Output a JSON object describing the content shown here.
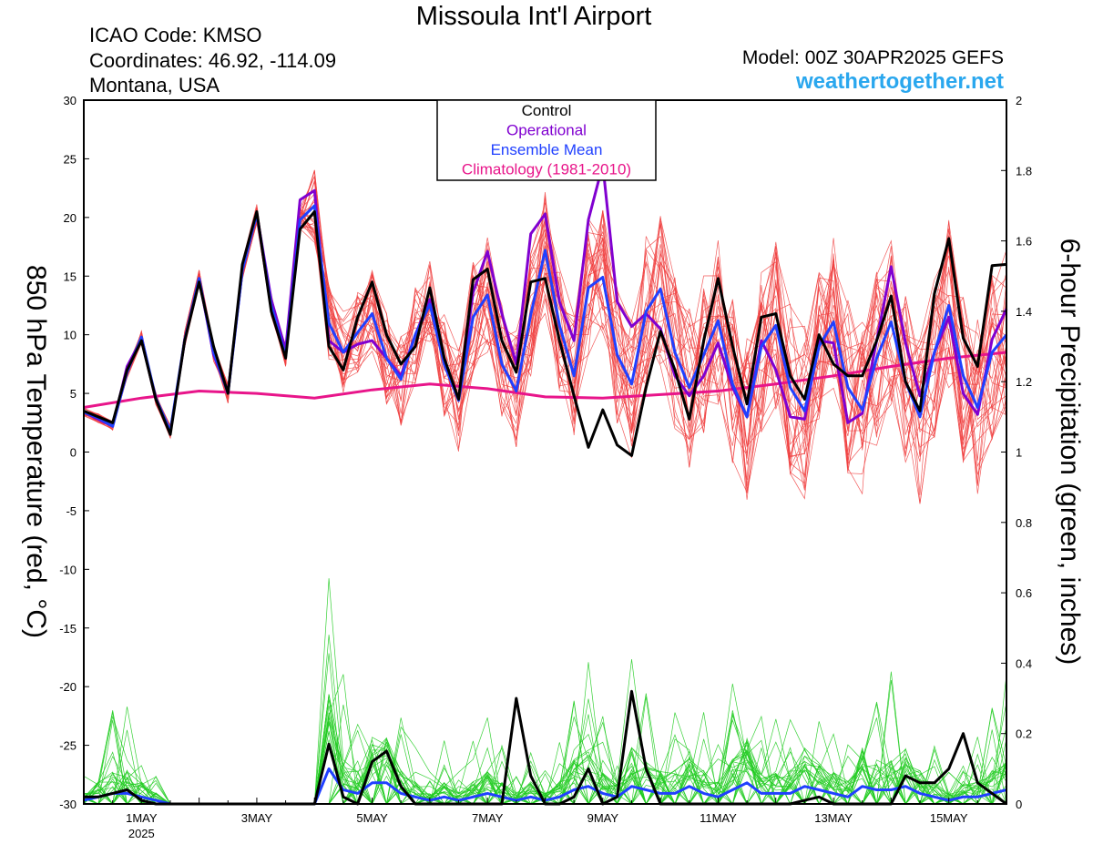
{
  "header": {
    "title": "Missoula Int'l Airport",
    "icao": "ICAO Code: KMSO",
    "coordinates": "Coordinates: 46.92, -114.09",
    "state": "Montana, USA",
    "model": "Model: 00Z 30APR2025 GEFS",
    "website": "weathertogether.net"
  },
  "chart_data": {
    "type": "line",
    "title": "Missoula Int'l Airport",
    "xlabel": "",
    "y_left_label": "850 hPa Temperature (red, °C)",
    "y_right_label": "6-hour Precipitation (green, inches)",
    "y_left_range": [
      -30,
      30
    ],
    "y_right_range": [
      0,
      2
    ],
    "y_left_ticks": [
      "30",
      "25",
      "20",
      "15",
      "10",
      "5",
      "0",
      "-5",
      "-10",
      "-15",
      "-20",
      "-25",
      "-30"
    ],
    "y_right_ticks": [
      "2",
      "1.8",
      "1.6",
      "1.4",
      "1.2",
      "1",
      "0.8",
      "0.6",
      "0.4",
      "0.2",
      "0"
    ],
    "x_day_range": [
      0,
      16
    ],
    "x_ticks": [
      {
        "day": 1,
        "label": "1MAY",
        "sublabel": "2025"
      },
      {
        "day": 3,
        "label": "3MAY"
      },
      {
        "day": 5,
        "label": "5MAY"
      },
      {
        "day": 7,
        "label": "7MAY"
      },
      {
        "day": 9,
        "label": "9MAY"
      },
      {
        "day": 11,
        "label": "11MAY"
      },
      {
        "day": 13,
        "label": "13MAY"
      },
      {
        "day": 15,
        "label": "15MAY"
      }
    ],
    "legend": {
      "position": "top-center",
      "items": [
        {
          "label": "Control",
          "color": "#000000"
        },
        {
          "label": "Operational",
          "color": "#8000d0"
        },
        {
          "label": "Ensemble Mean",
          "color": "#2040ff"
        },
        {
          "label": "Climatology (1981-2010)",
          "color": "#e8158a"
        }
      ]
    },
    "colors": {
      "members_temp": "#f04040",
      "members_precip": "#22cc22",
      "control": "#000000",
      "operational": "#8000d0",
      "ensemble_mean": "#2040ff",
      "climatology": "#e8158a"
    },
    "temperature_series": {
      "x_start_day": 0,
      "x_step_days": 0.25,
      "control": [
        3.5,
        3,
        2.5,
        7,
        9.5,
        4.5,
        1.5,
        9.5,
        14.5,
        9,
        5,
        16,
        20.5,
        12,
        8,
        19,
        20.5,
        9,
        7,
        11.5,
        14.5,
        10,
        7.5,
        9,
        14,
        8,
        4.5,
        14.7,
        15.6,
        9.5,
        6.8,
        14.5,
        14.8,
        9.5,
        4.8,
        0.4,
        3.6,
        0.6,
        -0.3,
        5.5,
        10.3,
        7,
        2.8,
        9.5,
        14.8,
        9,
        4.1,
        11.5,
        11.8,
        6.5,
        4.5,
        10,
        7.5,
        6.5,
        6.5,
        9.5,
        13.3,
        6,
        3.5,
        13.5,
        18.2,
        9.7,
        7.3,
        15.9,
        16
      ],
      "operational": [
        3.4,
        2.8,
        2.2,
        7.3,
        9.6,
        4.5,
        1.7,
        9.5,
        14.8,
        8.3,
        5.1,
        15.5,
        20.3,
        13,
        8.7,
        21.5,
        22.3,
        9.5,
        8.5,
        9.2,
        9.5,
        8,
        6.5,
        10,
        13,
        7.5,
        4.5,
        13.6,
        17.1,
        11.8,
        7.5,
        18.6,
        20.3,
        12.8,
        9.5,
        19.8,
        24.5,
        12.8,
        10.7,
        11.8,
        10.5,
        6.5,
        4.8,
        6.5,
        9.3,
        5.5,
        3,
        9.5,
        7,
        3,
        2.8,
        9.5,
        9.3,
        2.5,
        3.3,
        9.5,
        15.8,
        9.3,
        4.8,
        8.5,
        11.5,
        5,
        3.2,
        9.6,
        12.2
      ],
      "ensemble_mean": [
        3.4,
        2.9,
        2.2,
        6.8,
        9.8,
        4.6,
        1.8,
        9.6,
        14.8,
        8.5,
        5,
        15.5,
        20.3,
        12.5,
        8.2,
        19.8,
        21,
        11,
        8.5,
        10.2,
        11.8,
        8,
        6.2,
        10,
        12.6,
        7.5,
        4.4,
        11.5,
        13.4,
        7.5,
        5.2,
        11.7,
        17.2,
        10.8,
        6.5,
        14,
        14.9,
        8.3,
        5.8,
        12,
        13.9,
        8.5,
        5.5,
        8.3,
        11.2,
        5.8,
        3,
        9,
        10.8,
        5.5,
        3.5,
        9,
        11.1,
        5.5,
        3.6,
        8,
        11.1,
        6,
        3,
        8.5,
        12.5,
        6.5,
        3.8,
        8.5,
        10
      ]
    },
    "climatology_series": {
      "days": [
        0,
        1,
        2,
        3,
        4,
        5,
        6,
        7,
        8,
        9,
        10,
        11,
        12,
        13,
        14,
        15,
        16
      ],
      "values": [
        3.8,
        4.6,
        5.2,
        5,
        4.6,
        5.3,
        5.8,
        5.4,
        4.7,
        4.6,
        4.9,
        5.2,
        5.8,
        6.5,
        7.3,
        8,
        8.5
      ]
    },
    "precipitation_series": {
      "x_start_day": 0,
      "x_step_days": 0.25,
      "control": [
        0.02,
        0.02,
        0.03,
        0.04,
        0.01,
        0,
        0,
        0,
        0,
        0,
        0,
        0,
        0,
        0,
        0,
        0,
        0,
        0.17,
        0.02,
        0,
        0.12,
        0.15,
        0.05,
        0,
        0,
        0,
        0,
        0,
        0,
        0,
        0.3,
        0.08,
        0,
        0,
        0.02,
        0.1,
        0,
        0.02,
        0.32,
        0.1,
        0,
        0,
        0,
        0,
        0,
        0,
        0,
        0,
        0,
        0,
        0.01,
        0.02,
        0,
        0,
        0,
        0,
        0,
        0.08,
        0.06,
        0.06,
        0.1,
        0.2,
        0.06,
        0.03,
        0
      ],
      "ensemble_mean": [
        0.01,
        0.02,
        0.03,
        0.03,
        0.02,
        0.01,
        0,
        0,
        0,
        0,
        0,
        0,
        0,
        0,
        0,
        0,
        0,
        0.1,
        0.04,
        0.03,
        0.06,
        0.06,
        0.03,
        0.02,
        0.01,
        0.02,
        0.01,
        0.02,
        0.03,
        0.02,
        0.01,
        0.02,
        0.01,
        0.02,
        0.04,
        0.05,
        0.03,
        0.02,
        0.05,
        0.04,
        0.03,
        0.03,
        0.05,
        0.03,
        0.02,
        0.04,
        0.06,
        0.03,
        0.03,
        0.03,
        0.05,
        0.04,
        0.03,
        0.02,
        0.05,
        0.04,
        0.04,
        0.05,
        0.03,
        0.02,
        0.01,
        0.02,
        0.02,
        0.03,
        0.04
      ]
    }
  }
}
